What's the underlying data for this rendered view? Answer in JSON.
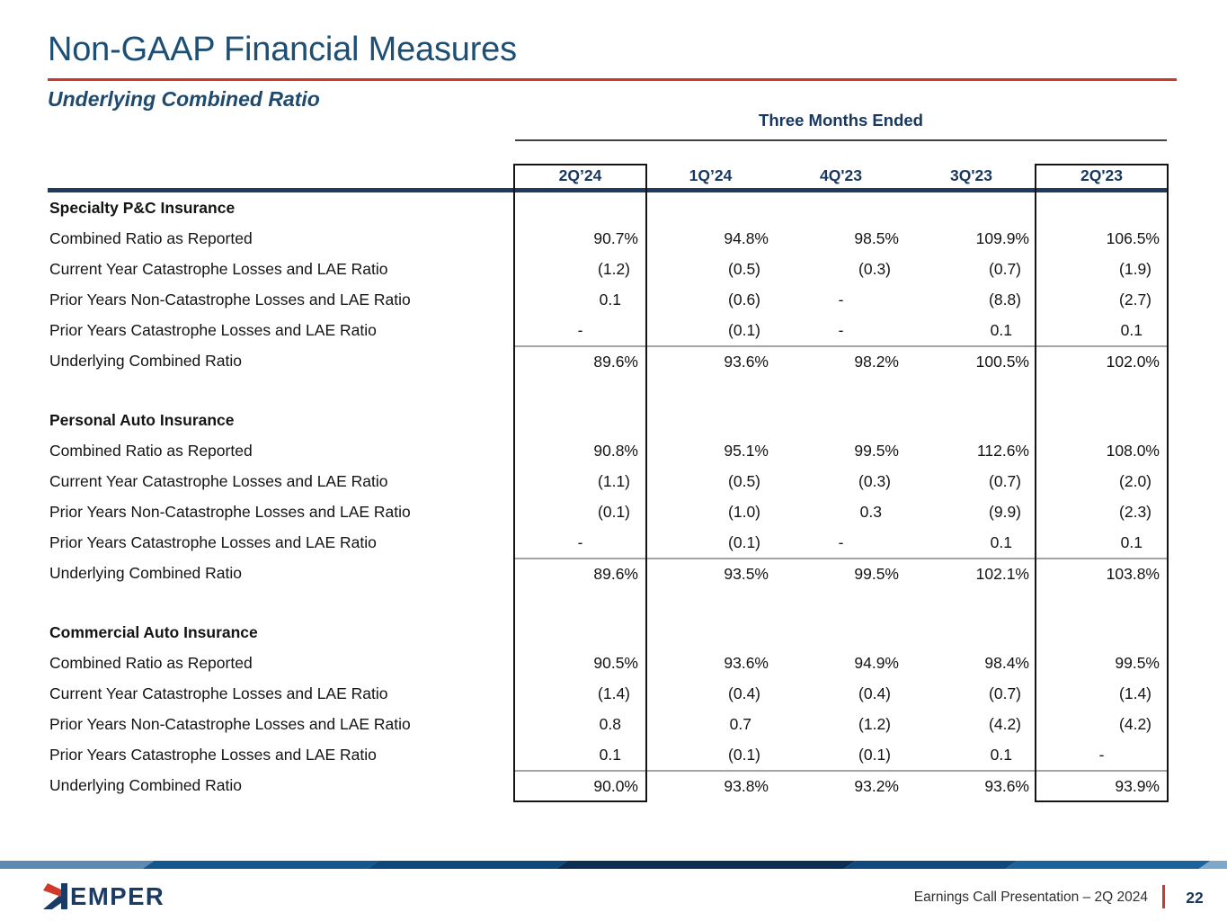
{
  "slide": {
    "title": "Non-GAAP Financial Measures",
    "subtitle": "Underlying Combined Ratio",
    "colors": {
      "title_navy": "#1d4e74",
      "table_navy": "#17375e",
      "header_rule_navy": "#1e3a5c",
      "accent_red": "#c93a2e",
      "logo_navy": "#1b3a64",
      "logo_red": "#d13a2a"
    }
  },
  "table": {
    "group_header": "Three Months Ended",
    "columns": [
      "2Q’24",
      "1Q’24",
      "4Q'23",
      "3Q'23",
      "2Q'23"
    ],
    "highlighted_columns": [
      "2Q’24",
      "2Q'23"
    ],
    "sections": [
      {
        "name": "Specialty P&C Insurance",
        "rows": [
          {
            "label": "Combined Ratio as Reported",
            "values": [
              "90.7%",
              "94.8%",
              "98.5%",
              "109.9%",
              "106.5%"
            ]
          },
          {
            "label": "Current Year Catastrophe Losses and LAE Ratio",
            "values": [
              "(1.2)",
              "(0.5)",
              "(0.3)",
              "(0.7)",
              "(1.9)"
            ]
          },
          {
            "label": "Prior Years Non-Catastrophe Losses and LAE Ratio",
            "values": [
              "0.1",
              "(0.6)",
              "-",
              "(8.8)",
              "(2.7)"
            ]
          },
          {
            "label": "Prior Years Catastrophe Losses and LAE Ratio",
            "values": [
              "-",
              "(0.1)",
              "-",
              "0.1",
              "0.1"
            ]
          },
          {
            "label": "Underlying Combined Ratio",
            "values": [
              "89.6%",
              "93.6%",
              "98.2%",
              "100.5%",
              "102.0%"
            ],
            "is_total": true
          }
        ]
      },
      {
        "name": "Personal Auto Insurance",
        "rows": [
          {
            "label": "Combined Ratio as Reported",
            "values": [
              "90.8%",
              "95.1%",
              "99.5%",
              "112.6%",
              "108.0%"
            ]
          },
          {
            "label": "Current Year Catastrophe Losses and LAE Ratio",
            "values": [
              "(1.1)",
              "(0.5)",
              "(0.3)",
              "(0.7)",
              "(2.0)"
            ]
          },
          {
            "label": "Prior Years Non-Catastrophe Losses and LAE Ratio",
            "values": [
              "(0.1)",
              "(1.0)",
              "0.3",
              "(9.9)",
              "(2.3)"
            ]
          },
          {
            "label": "Prior Years Catastrophe Losses and LAE Ratio",
            "values": [
              "-",
              "(0.1)",
              "-",
              "0.1",
              "0.1"
            ]
          },
          {
            "label": "Underlying Combined Ratio",
            "values": [
              "89.6%",
              "93.5%",
              "99.5%",
              "102.1%",
              "103.8%"
            ],
            "is_total": true
          }
        ]
      },
      {
        "name": "Commercial Auto Insurance",
        "rows": [
          {
            "label": "Combined Ratio as Reported",
            "values": [
              "90.5%",
              "93.6%",
              "94.9%",
              "98.4%",
              "99.5%"
            ]
          },
          {
            "label": "Current Year Catastrophe Losses and LAE Ratio",
            "values": [
              "(1.4)",
              "(0.4)",
              "(0.4)",
              "(0.7)",
              "(1.4)"
            ]
          },
          {
            "label": "Prior Years Non-Catastrophe Losses and LAE Ratio",
            "values": [
              "0.8",
              "0.7",
              "(1.2)",
              "(4.2)",
              "(4.2)"
            ]
          },
          {
            "label": "Prior Years Catastrophe Losses and LAE Ratio",
            "values": [
              "0.1",
              "(0.1)",
              "(0.1)",
              "0.1",
              "-"
            ]
          },
          {
            "label": "Underlying Combined Ratio",
            "values": [
              "90.0%",
              "93.8%",
              "93.2%",
              "93.6%",
              "93.9%"
            ],
            "is_total": true
          }
        ]
      }
    ]
  },
  "footer": {
    "logo_text": "KEMPER",
    "logo_rest": "EMPER",
    "caption": "Earnings Call Presentation – 2Q 2024",
    "page_number": "22",
    "stripe_colors": [
      "#5d8ab1",
      "#14568e",
      "#0e477a",
      "#0b2f52",
      "#11497c",
      "#1d639b",
      "#7ea8c8"
    ]
  }
}
